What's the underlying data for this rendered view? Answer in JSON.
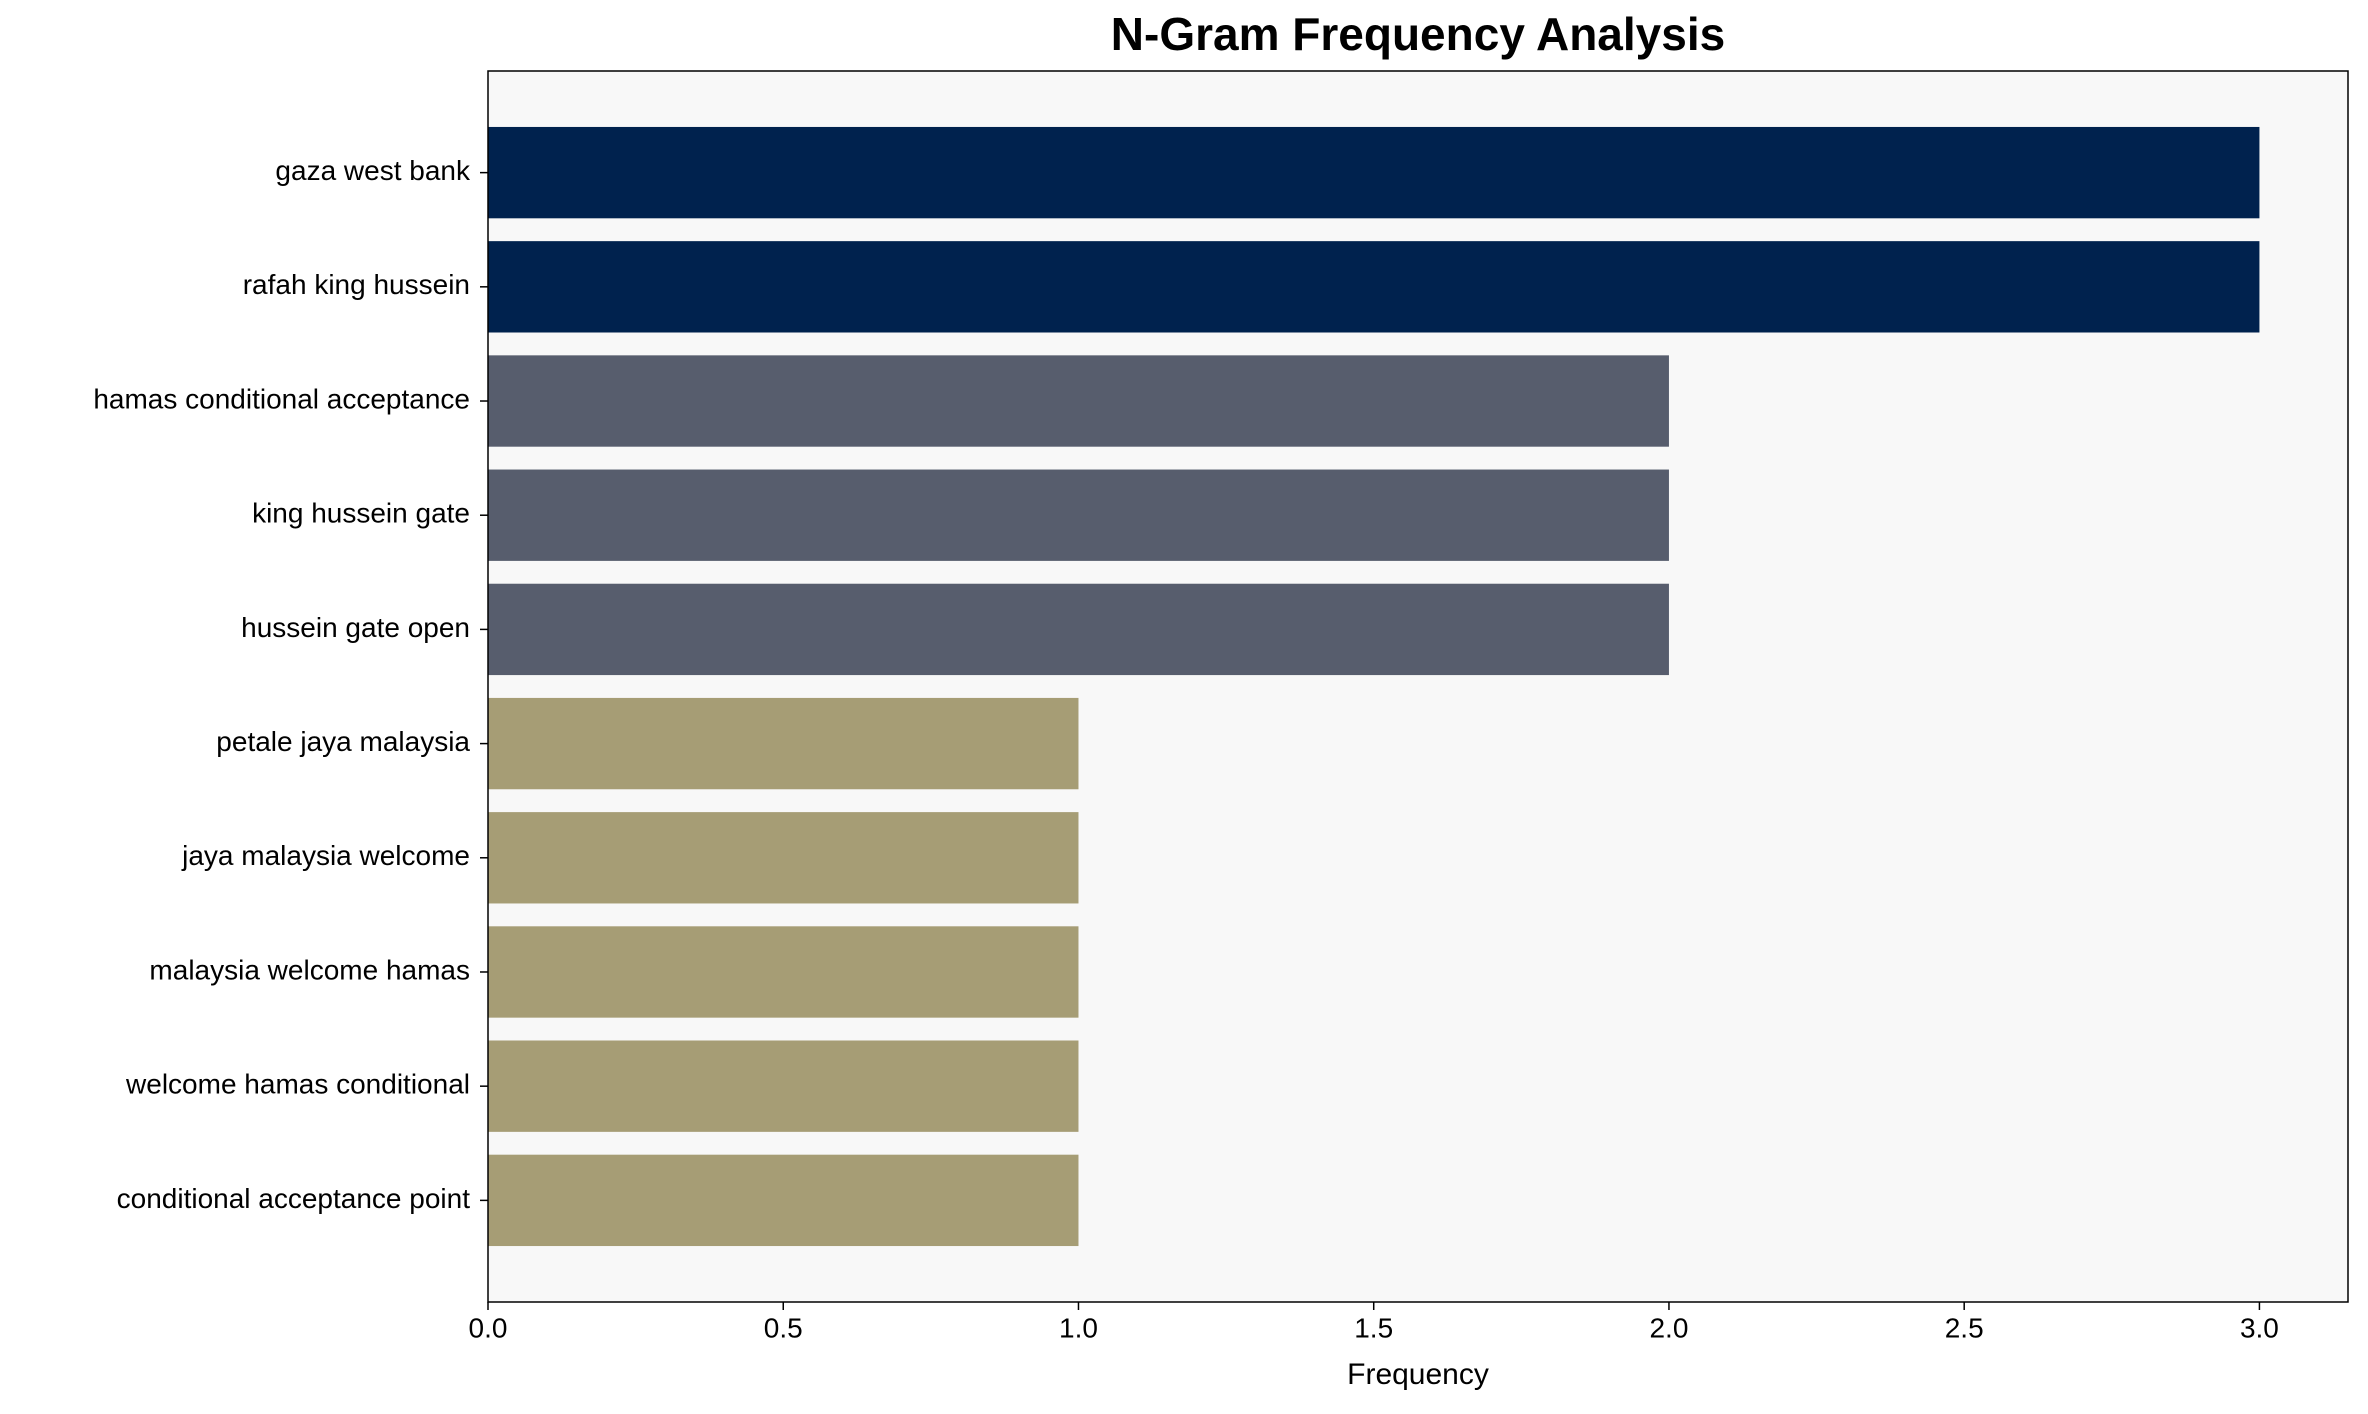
{
  "chart_data": {
    "type": "barh",
    "title": "N-Gram Frequency Analysis",
    "x_label": "Frequency",
    "categories": [
      "gaza west bank",
      "rafah king hussein",
      "hamas conditional acceptance",
      "king hussein gate",
      "hussein gate open",
      "petale jaya malaysia",
      "jaya malaysia welcome",
      "malaysia welcome hamas",
      "welcome hamas conditional",
      "conditional acceptance point"
    ],
    "values": [
      3,
      3,
      2,
      2,
      2,
      1,
      1,
      1,
      1,
      1
    ],
    "colors": [
      "#00224e",
      "#00224e",
      "#575d6d",
      "#575d6d",
      "#575d6d",
      "#a69d75",
      "#a69d75",
      "#a69d75",
      "#a69d75",
      "#a69d75"
    ],
    "xlim": [
      0,
      3.15
    ],
    "xticks": [
      {
        "value": 0,
        "label": "0.0"
      },
      {
        "value": 0.5,
        "label": "0.5"
      },
      {
        "value": 1,
        "label": "1.0"
      },
      {
        "value": 1.5,
        "label": "1.5"
      },
      {
        "value": 2,
        "label": "2.0"
      },
      {
        "value": 2.5,
        "label": "2.5"
      },
      {
        "value": 3,
        "label": "3.0"
      }
    ],
    "grid": false
  }
}
